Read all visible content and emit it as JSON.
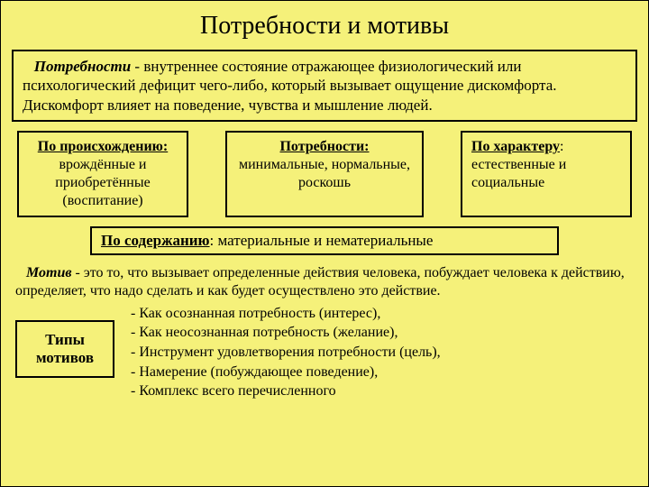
{
  "colors": {
    "background": "#f5f17a",
    "border": "#000000",
    "text": "#000000"
  },
  "title": "Потребности и мотивы",
  "definition": {
    "term": "Потребности",
    "sep": " - ",
    "text": "внутреннее состояние отражающее физиологический или психологический дефицит чего-либо, который вызывает ощущение дискомфорта. Дискомфорт влияет на поведение, чувства и мышление людей."
  },
  "classifications": {
    "origin": {
      "header": "По происхождению:",
      "body": "врождённые и приобретённые (воспитание)"
    },
    "needs": {
      "header": "Потребности:",
      "body": "минимальные, нормальные, роскошь"
    },
    "character": {
      "header": "По характеру",
      "header_suffix": ":",
      "body": " естественные и социальные"
    },
    "content": {
      "header": "По содержанию",
      "header_suffix": ": ",
      "body": "материальные и нематериальные"
    }
  },
  "motive": {
    "term": "Мотив",
    "sep": " - ",
    "text": "это то, что вызывает определенные действия человека, побуждает человека к действию, определяет, что надо сделать и как будет осуществлено это действие."
  },
  "types_label": "Типы мотивов",
  "types_items": [
    "Как осознанная потребность (интерес),",
    "Как неосознанная потребность (желание),",
    "Инструмент удовлетворения потребности (цель),",
    "Намерение (побуждающее поведение),",
    "Комплекс всего перечисленного"
  ]
}
